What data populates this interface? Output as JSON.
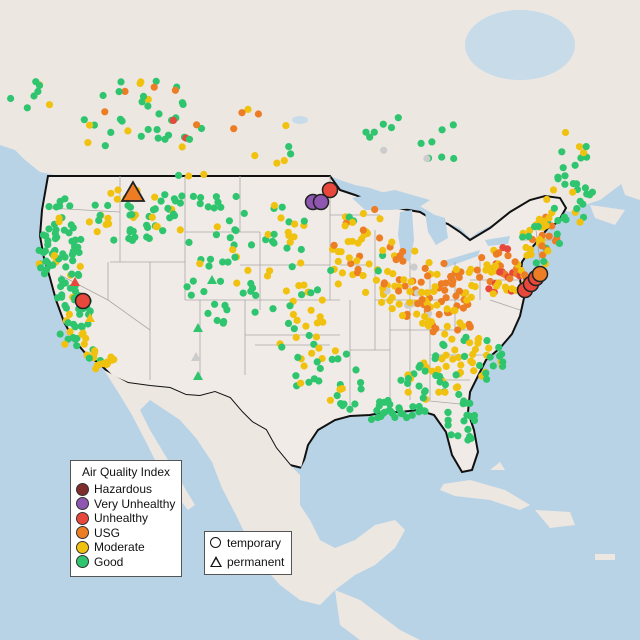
{
  "legend": {
    "title": "Air Quality Index",
    "categories": [
      {
        "label": "Hazardous",
        "color": "#7e2c2c"
      },
      {
        "label": "Very Unhealthy",
        "color": "#8e55b1"
      },
      {
        "label": "Unhealthy",
        "color": "#e8483b"
      },
      {
        "label": "USG",
        "color": "#ed7d25"
      },
      {
        "label": "Moderate",
        "color": "#f0c20f"
      },
      {
        "label": "Good",
        "color": "#2fc56f"
      }
    ],
    "types": [
      {
        "label": "temporary",
        "icon": "circle-icon"
      },
      {
        "label": "permanent",
        "icon": "triangle-icon"
      }
    ]
  },
  "colors": {
    "water": "#b9d3e6",
    "land": "#ede7e2",
    "us_land": "#f0ebe7",
    "border": "#111111",
    "state_line": "#a8a8a8"
  }
}
